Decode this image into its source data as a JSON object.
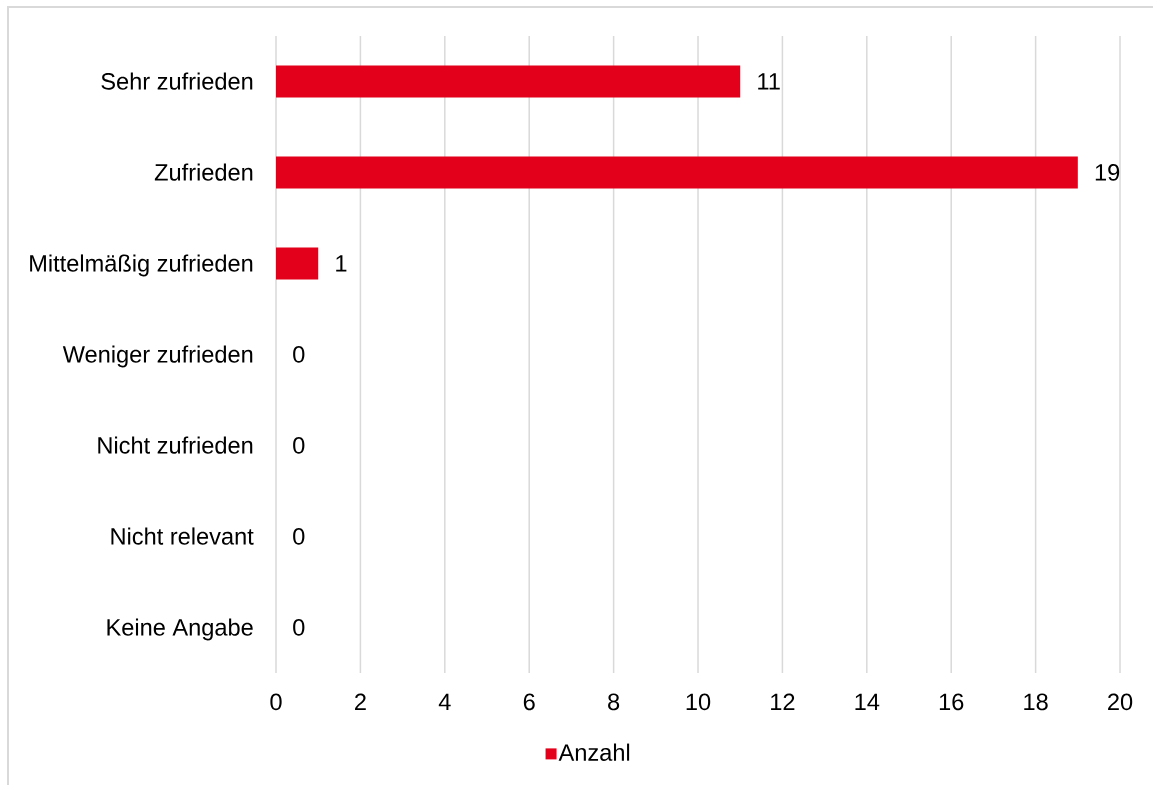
{
  "chart_data": {
    "type": "bar",
    "orientation": "horizontal",
    "categories": [
      "Sehr zufrieden",
      "Zufrieden",
      "Mittelmäßig zufrieden",
      "Weniger zufrieden",
      "Nicht zufrieden",
      "Nicht relevant",
      "Keine Angabe"
    ],
    "series": [
      {
        "name": "Anzahl",
        "color": "#e2001a",
        "values": [
          11,
          19,
          1,
          0,
          0,
          0,
          0
        ]
      }
    ],
    "xlim": [
      0,
      20
    ],
    "xticks": [
      0,
      2,
      4,
      6,
      8,
      10,
      12,
      14,
      16,
      18,
      20
    ],
    "grid": "x",
    "legend": "bottom",
    "data_labels": true
  }
}
